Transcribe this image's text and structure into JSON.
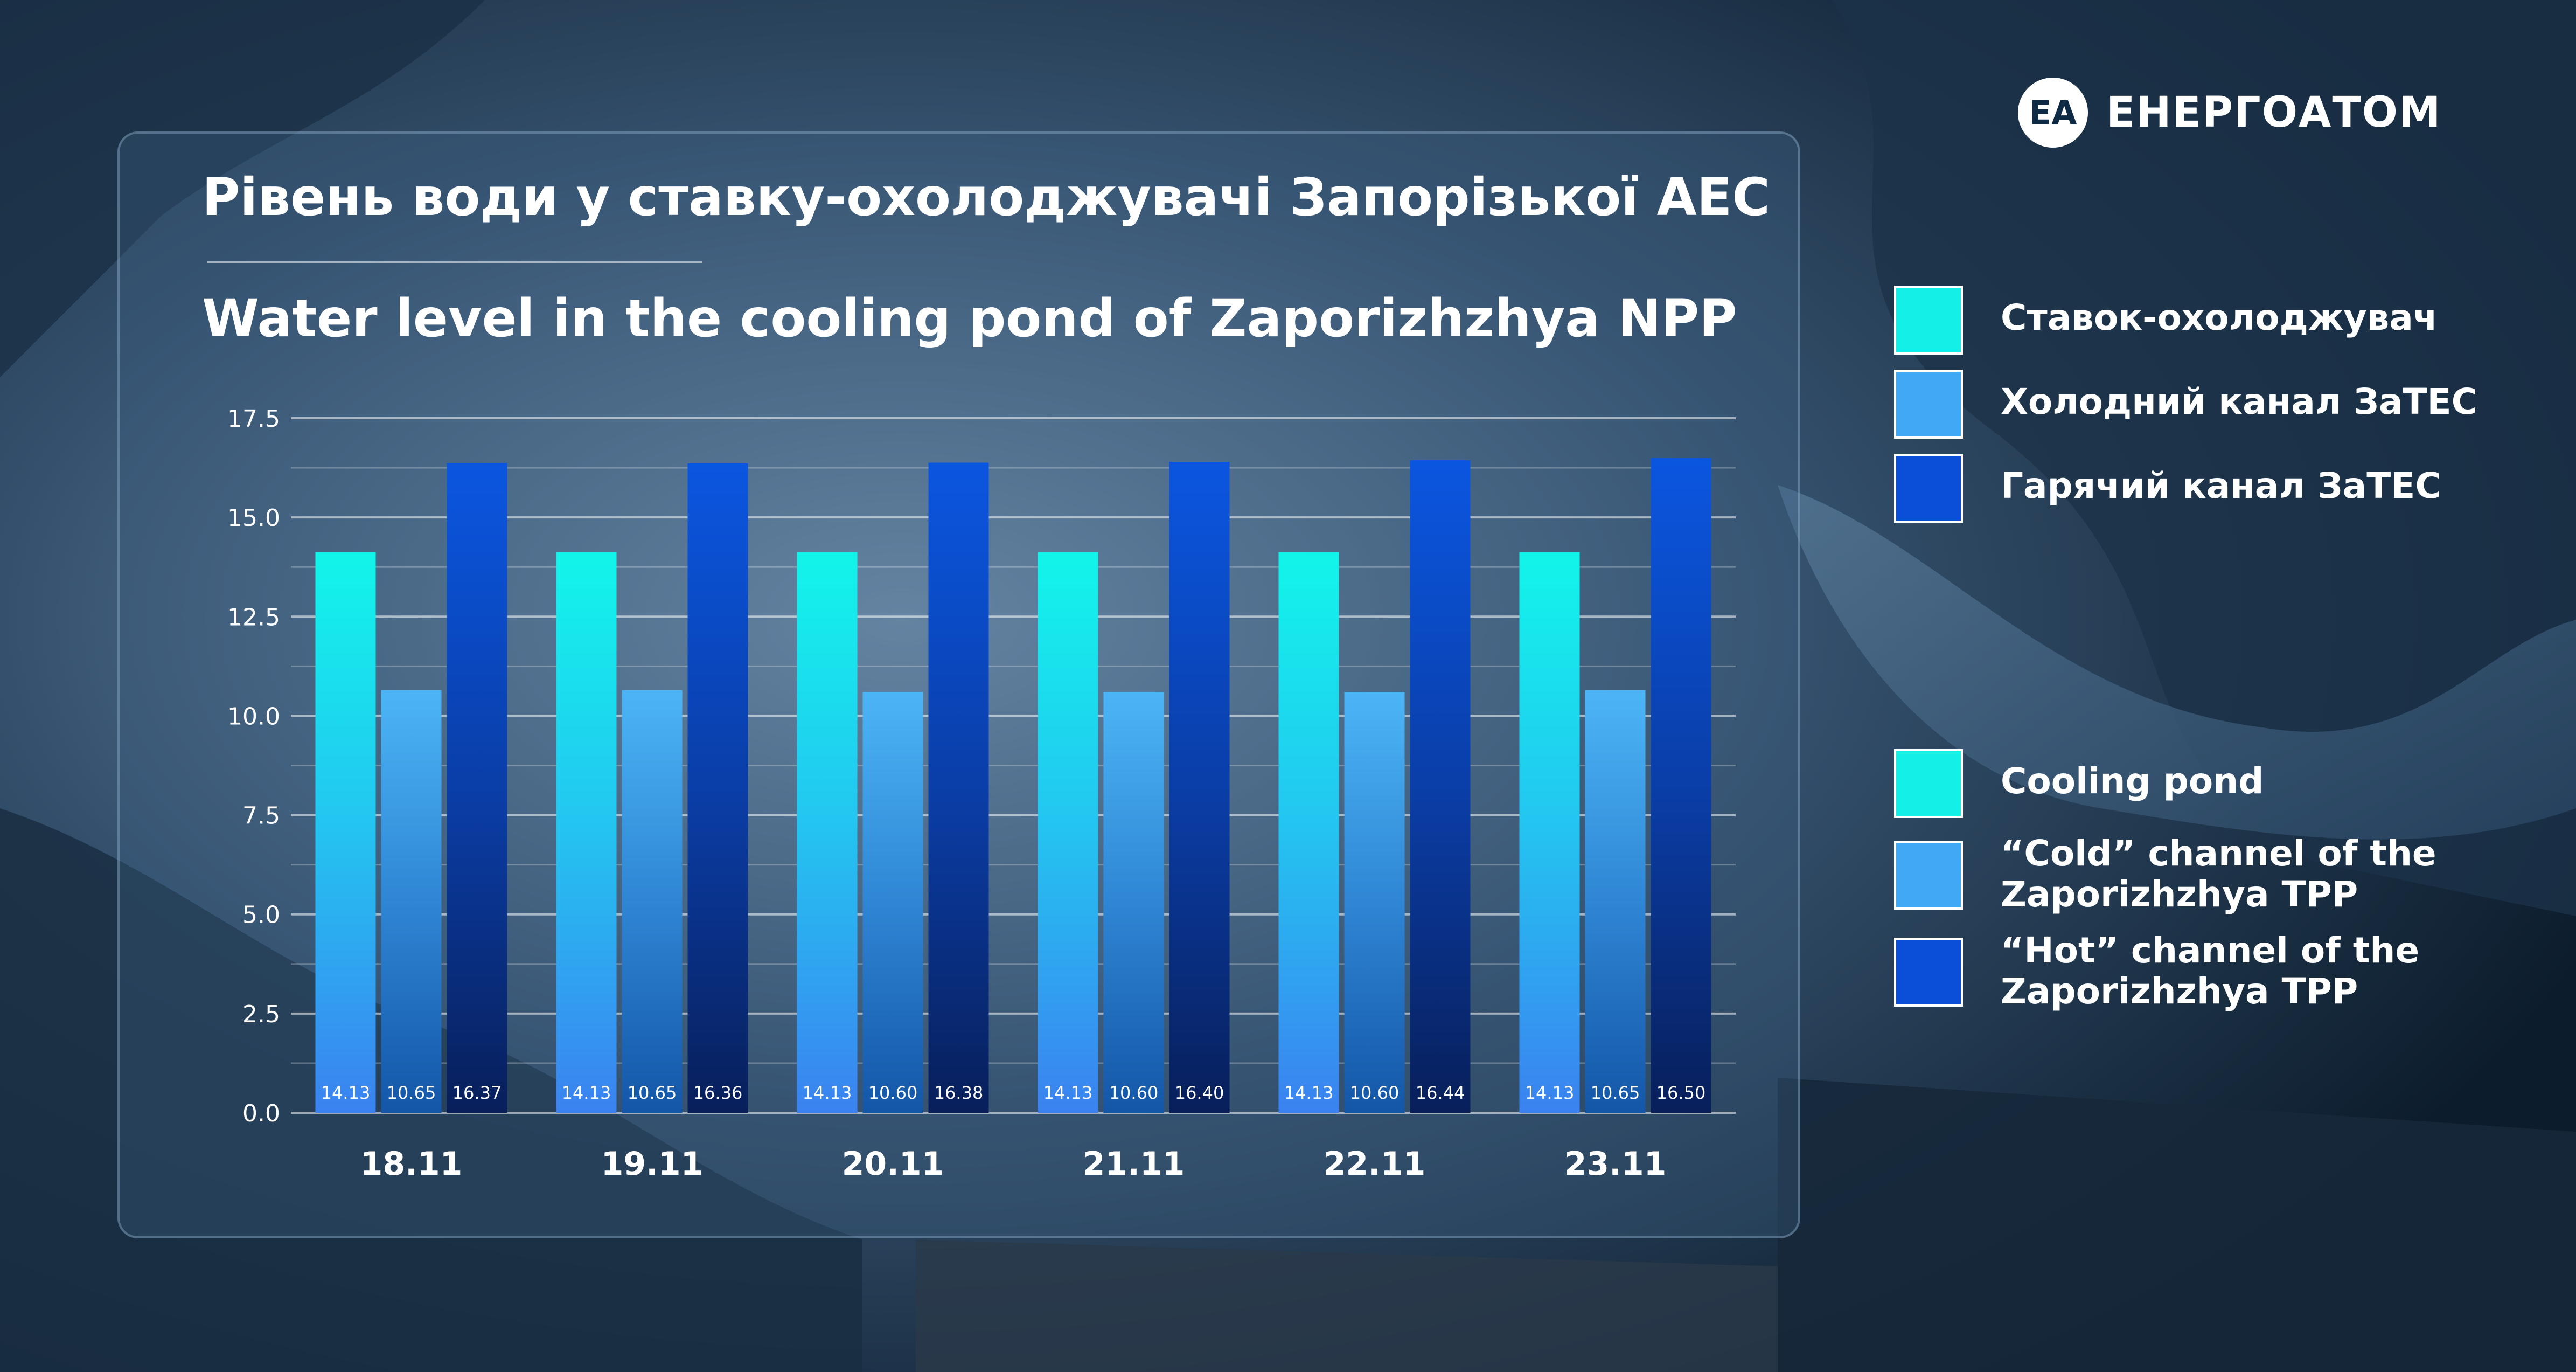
{
  "title_ua": "Рівень води у ставку-охолоджувачі Запорізької АЕС",
  "title_en": "Water level in the cooling pond of Zaporizhzhya NPP",
  "brand": {
    "name": "ЕНЕРГОАТОМ",
    "mark": "ЕА"
  },
  "legend_ua": [
    {
      "label": "Ставок-охолоджувач",
      "color": "#14f0e8"
    },
    {
      "label": "Холодний канал ЗаТЕС",
      "color": "#3fa9f5"
    },
    {
      "label": "Гарячий канал ЗаТЕС",
      "color": "#0b4fd8"
    }
  ],
  "legend_en": [
    {
      "label": "Cooling pond",
      "color": "#14f0e8"
    },
    {
      "label": "“Cold” channel of the Zaporizhzhya TPP",
      "color": "#3fa9f5"
    },
    {
      "label": "“Hot” channel of the Zaporizhzhya TPP",
      "color": "#0b4fd8"
    }
  ],
  "chart_data": {
    "type": "bar",
    "categories": [
      "18.11",
      "19.11",
      "20.11",
      "21.11",
      "22.11",
      "23.11"
    ],
    "series": [
      {
        "name": "Ставок-охолоджувач",
        "color": "#14f0e8",
        "values": [
          14.13,
          14.13,
          14.13,
          14.13,
          14.13,
          14.13
        ],
        "labels": [
          "14.13",
          "14.13",
          "14.13",
          "14.13",
          "14.13",
          "14.13"
        ]
      },
      {
        "name": "Холодний канал ЗаТЕС",
        "color": "#3fa9f5",
        "values": [
          10.65,
          10.65,
          10.6,
          10.6,
          10.6,
          10.65
        ],
        "labels": [
          "10.65",
          "10.65",
          "10.60",
          "10.60",
          "10.60",
          "10.65"
        ]
      },
      {
        "name": "Гарячий канал ЗаТЕС",
        "color": "#0b4fd8",
        "values": [
          16.37,
          16.36,
          16.38,
          16.4,
          16.44,
          16.5
        ],
        "labels": [
          "16.37",
          "16.36",
          "16.38",
          "16.40",
          "16.44",
          "16.50"
        ]
      }
    ],
    "ylim": [
      0,
      17.5
    ],
    "yticks": [
      "0.0",
      "2.5",
      "5.0",
      "7.5",
      "10.0",
      "12.5",
      "15.0",
      "17.5"
    ],
    "grid": true
  }
}
